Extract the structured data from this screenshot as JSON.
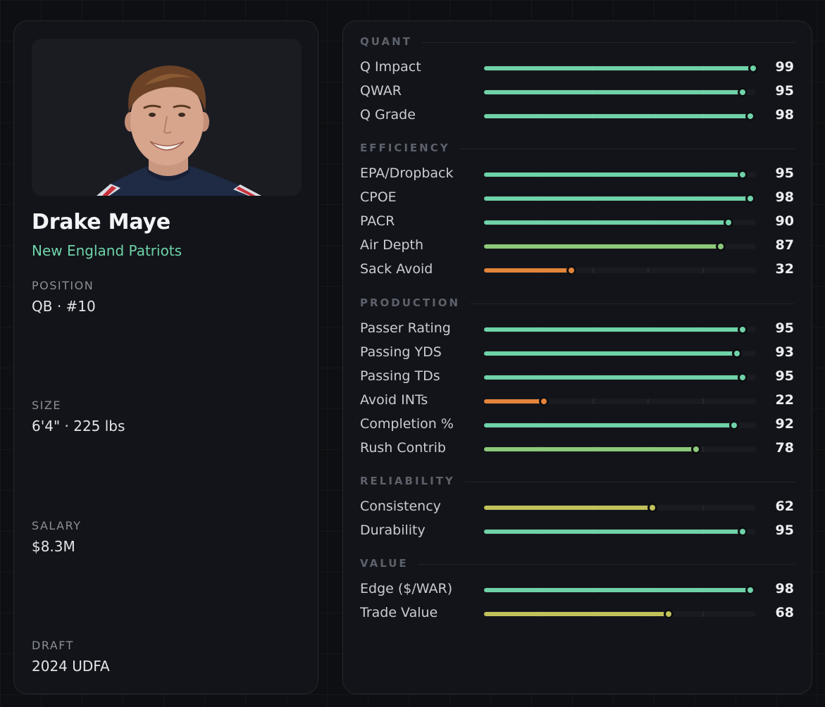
{
  "player": {
    "name": "Drake Maye",
    "team": "New England Patriots",
    "info": [
      {
        "label": "POSITION",
        "value": "QB · #10"
      },
      {
        "label": "SIZE",
        "value": "6'4\" · 225 lbs"
      },
      {
        "label": "SALARY",
        "value": "$8.3M"
      },
      {
        "label": "DRAFT",
        "value": "2024 UDFA"
      }
    ]
  },
  "colors": {
    "high": "#6fd3a8",
    "good": "#8cc97a",
    "mid": "#c2c25a",
    "low": "#e4843a",
    "accent_team": "#6fd3a8"
  },
  "sections": [
    {
      "title": "QUANT",
      "rows": [
        {
          "label": "Q Impact",
          "value": 99,
          "tier": "high"
        },
        {
          "label": "QWAR",
          "value": 95,
          "tier": "high"
        },
        {
          "label": "Q Grade",
          "value": 98,
          "tier": "high"
        }
      ]
    },
    {
      "title": "EFFICIENCY",
      "rows": [
        {
          "label": "EPA/Dropback",
          "value": 95,
          "tier": "high"
        },
        {
          "label": "CPOE",
          "value": 98,
          "tier": "high"
        },
        {
          "label": "PACR",
          "value": 90,
          "tier": "high"
        },
        {
          "label": "Air Depth",
          "value": 87,
          "tier": "good"
        },
        {
          "label": "Sack Avoid",
          "value": 32,
          "tier": "low"
        }
      ]
    },
    {
      "title": "PRODUCTION",
      "rows": [
        {
          "label": "Passer Rating",
          "value": 95,
          "tier": "high"
        },
        {
          "label": "Passing YDS",
          "value": 93,
          "tier": "high"
        },
        {
          "label": "Passing TDs",
          "value": 95,
          "tier": "high"
        },
        {
          "label": "Avoid INTs",
          "value": 22,
          "tier": "low"
        },
        {
          "label": "Completion %",
          "value": 92,
          "tier": "high"
        },
        {
          "label": "Rush Contrib",
          "value": 78,
          "tier": "good"
        }
      ]
    },
    {
      "title": "RELIABILITY",
      "rows": [
        {
          "label": "Consistency",
          "value": 62,
          "tier": "mid"
        },
        {
          "label": "Durability",
          "value": 95,
          "tier": "high"
        }
      ]
    },
    {
      "title": "VALUE",
      "rows": [
        {
          "label": "Edge ($/WAR)",
          "value": 98,
          "tier": "high"
        },
        {
          "label": "Trade Value",
          "value": 68,
          "tier": "mid"
        }
      ]
    }
  ]
}
